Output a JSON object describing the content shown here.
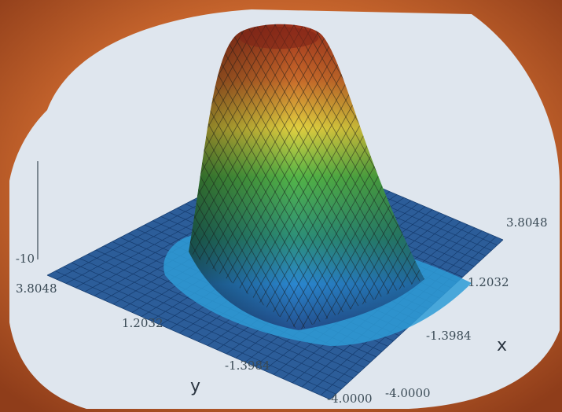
{
  "chart_data": {
    "type": "surface",
    "x": {
      "label": "x",
      "ticks": [
        "-4.0000",
        "-1.3984",
        "1.2032",
        "3.8048"
      ],
      "range": [
        -4.0,
        3.8048
      ]
    },
    "y": {
      "label": "y",
      "ticks": [
        "-4.0000",
        "-1.3984",
        "1.2032",
        "3.8048"
      ],
      "range": [
        -4.0,
        3.8048
      ]
    },
    "z": {
      "ticks": [
        "-10"
      ]
    },
    "surface": "single raised peak centered near the origin, flat elsewhere",
    "colormap": [
      "#1e4f8f",
      "#2a8fd0",
      "#4cbc4a",
      "#e0d040",
      "#d06a2a",
      "#8a2a1a"
    ],
    "grid": true
  }
}
